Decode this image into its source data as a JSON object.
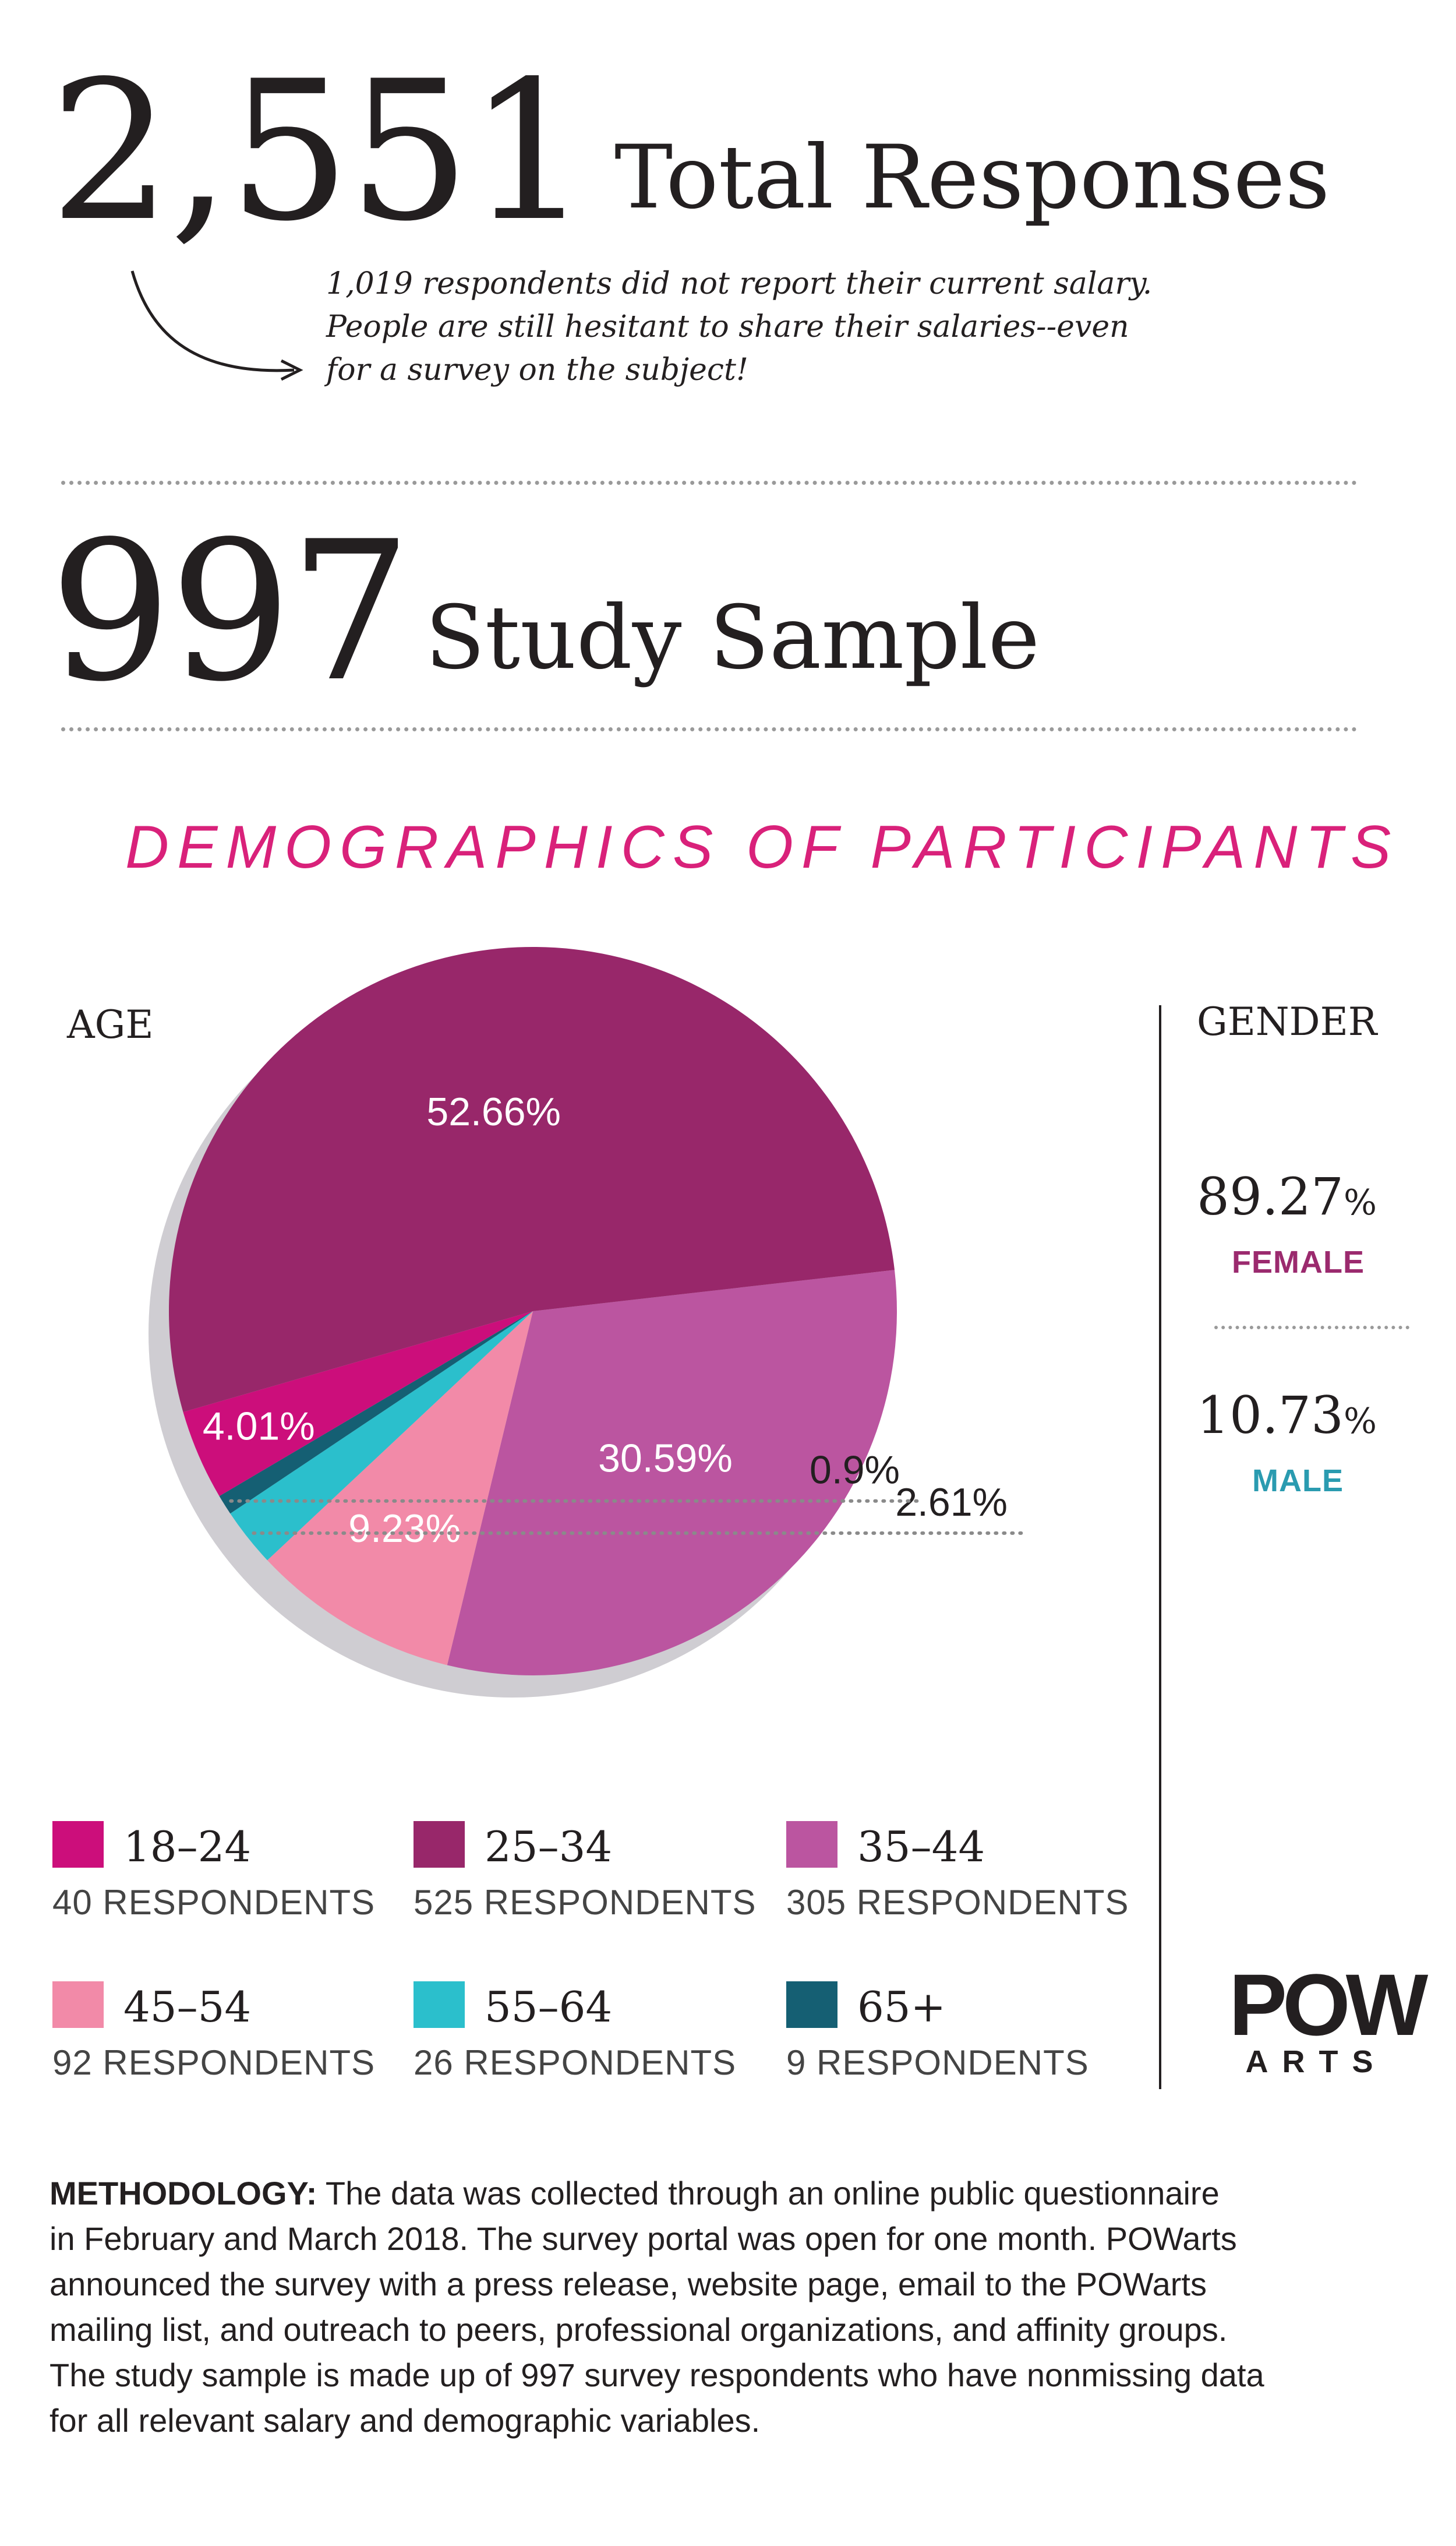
{
  "totals": {
    "total_number": "2,551",
    "total_label": "Total Responses",
    "note_lines": [
      "1,019 respondents did not report their current salary.",
      "People are still hesitant to share their salaries--even",
      "for a survey on the subject!"
    ],
    "sample_number": "997",
    "sample_label": "Study Sample"
  },
  "demographics_title": "DEMOGRAPHICS OF PARTICIPANTS",
  "age_caption": "AGE",
  "gender": {
    "caption": "GENDER",
    "female_value": "89.27",
    "female_label": "FEMALE",
    "male_value": "10.73",
    "male_label": "MALE",
    "percent_sign": "%",
    "female_color": "#9b2a6e",
    "male_color": "#2a9bb0"
  },
  "chart_data": {
    "type": "pie",
    "title": "AGE",
    "slices": [
      {
        "name": "18–24",
        "respondents_label": "40 RESPONDENTS",
        "value": 4.01,
        "label": "4.01%",
        "color": "#cc0e7b"
      },
      {
        "name": "25–34",
        "respondents_label": "525 RESPONDENTS",
        "value": 52.66,
        "label": "52.66%",
        "color": "#98276a"
      },
      {
        "name": "35–44",
        "respondents_label": "305 RESPONDENTS",
        "value": 30.59,
        "label": "30.59%",
        "color": "#bb55a0"
      },
      {
        "name": "45–54",
        "respondents_label": "92 RESPONDENTS",
        "value": 9.23,
        "label": "9.23%",
        "color": "#f28aa8"
      },
      {
        "name": "55–64",
        "respondents_label": "26 RESPONDENTS",
        "value": 2.61,
        "label": "2.61%",
        "color": "#2bbfcc"
      },
      {
        "name": "65+",
        "respondents_label": "9 RESPONDENTS",
        "value": 0.9,
        "label": "0.9%",
        "color": "#155f73"
      }
    ]
  },
  "logo": {
    "main": "POW",
    "sub": "ARTS"
  },
  "methodology": {
    "heading": "METHODOLOGY:",
    "lines": [
      " The data was collected through an online public questionnaire",
      "in February and March 2018. The survey portal was open for one month. POWarts",
      "announced the survey with a press release, website page, email to the POWarts",
      "mailing list, and outreach to peers, professional organizations, and affinity groups.",
      "The study sample is made up of 997 survey respondents who have nonmissing data",
      "for all relevant salary and demographic variables."
    ]
  }
}
